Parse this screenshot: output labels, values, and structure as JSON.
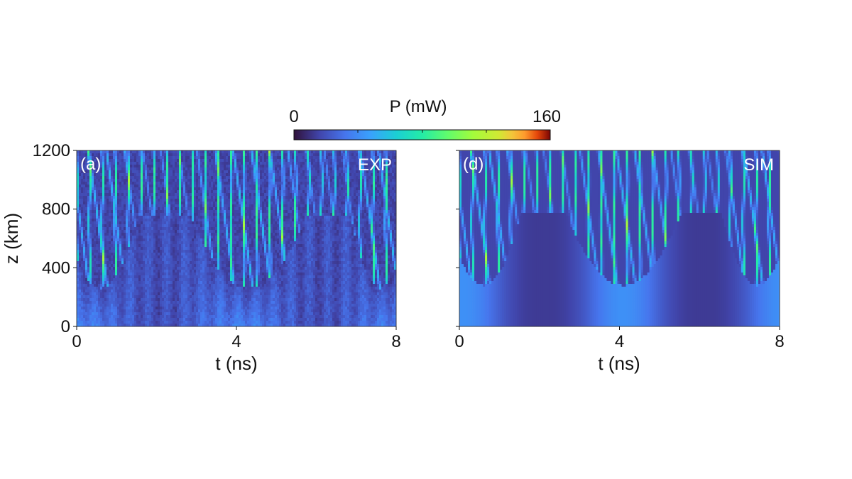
{
  "colorbar": {
    "label": "P (mW)",
    "min_label": "0",
    "max_label": "160",
    "range": [
      0,
      160
    ],
    "colormap": "turbo"
  },
  "chart_data": [
    {
      "type": "heatmap",
      "panel_label": "(a)",
      "tag": "EXP",
      "xlabel": "t (ns)",
      "ylabel": "z (km)",
      "xlim": [
        0,
        8
      ],
      "ylim": [
        0,
        1200
      ],
      "xticks": [
        "0",
        "4",
        "8"
      ],
      "yticks": [
        "0",
        "400",
        "800",
        "1200"
      ],
      "value_label": "P (mW)",
      "value_range": [
        0,
        160
      ],
      "onset_z_km": 260,
      "active_t_regions_ns": [
        [
          0,
          1.2
        ],
        [
          3.2,
          5.4
        ],
        [
          7.2,
          8
        ]
      ],
      "noisy": true
    },
    {
      "type": "heatmap",
      "panel_label": "(d)",
      "tag": "SIM",
      "xlabel": "t (ns)",
      "ylabel": "",
      "xlim": [
        0,
        8
      ],
      "ylim": [
        0,
        1200
      ],
      "xticks": [
        "0",
        "4",
        "8"
      ],
      "yticks": [],
      "value_label": "P (mW)",
      "value_range": [
        0,
        160
      ],
      "onset_z_km": 280,
      "active_t_regions_ns": [
        [
          0,
          1.2
        ],
        [
          3.0,
          5.2
        ],
        [
          6.9,
          8
        ]
      ],
      "noisy": false
    }
  ]
}
